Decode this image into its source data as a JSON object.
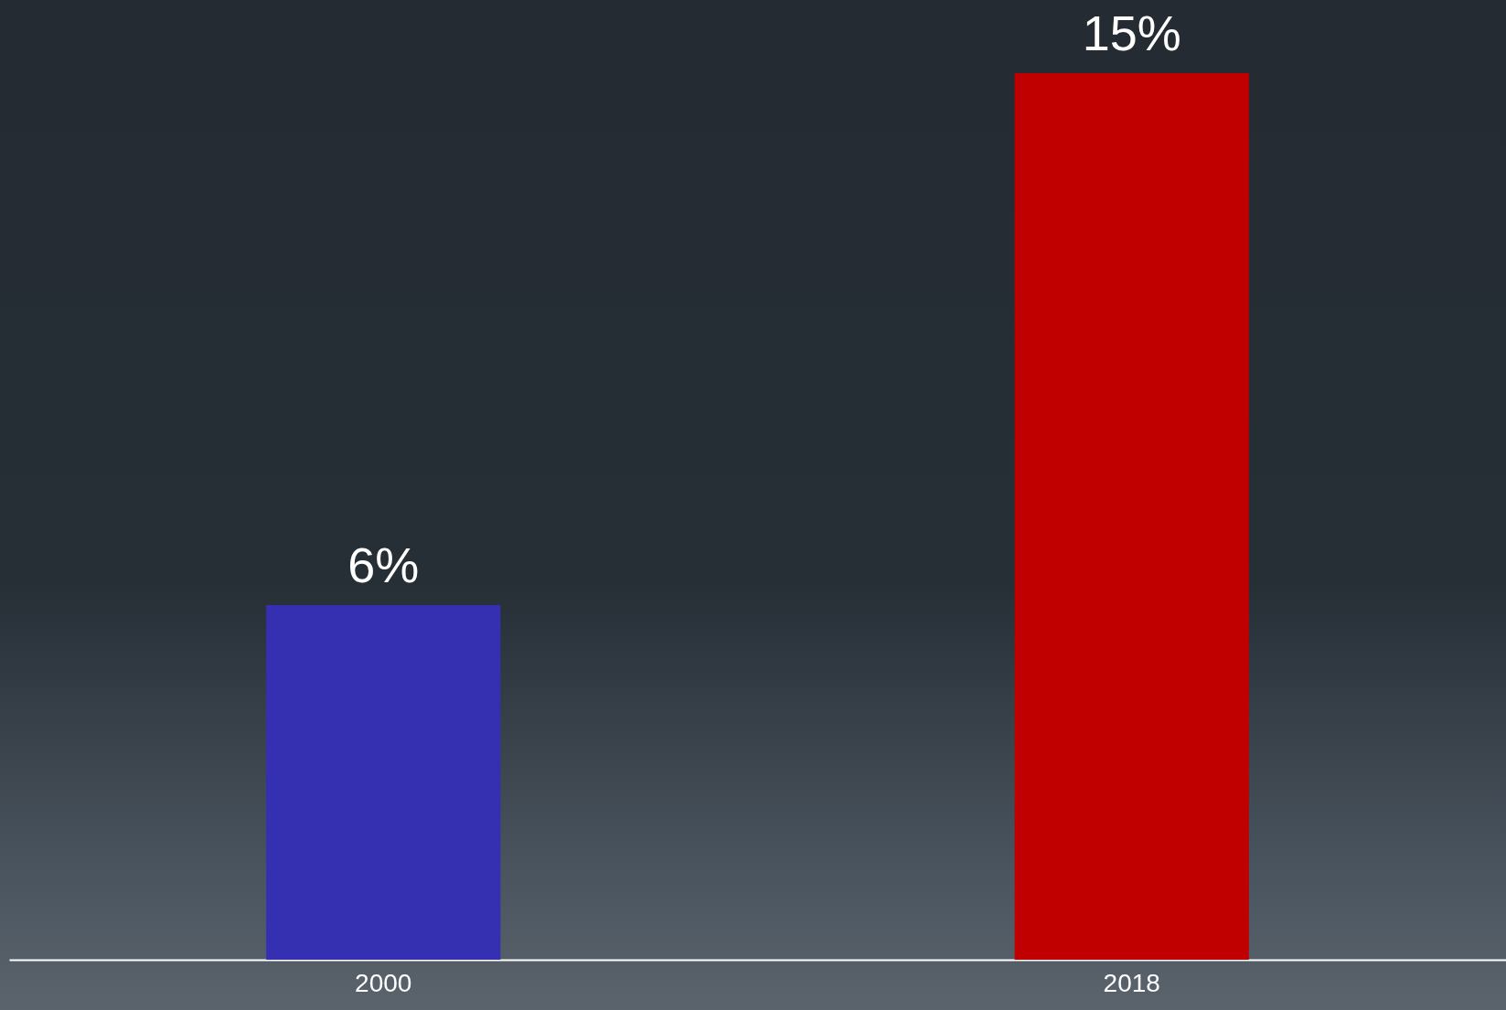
{
  "chart_data": {
    "type": "bar",
    "categories": [
      "2000",
      "2018"
    ],
    "values": [
      6,
      15
    ],
    "colors": [
      "#3430b1",
      "#c00000"
    ],
    "value_labels": [
      "6%",
      "15%"
    ],
    "grid": false
  }
}
